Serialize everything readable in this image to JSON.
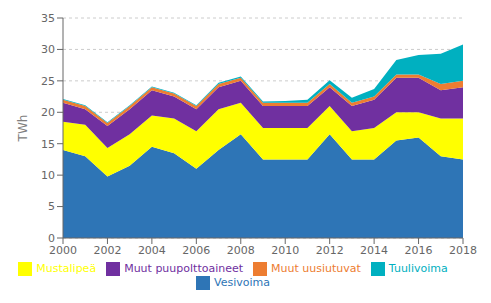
{
  "chart_data": {
    "type": "area",
    "stacked": true,
    "ylabel": "TWh",
    "x": [
      2000,
      2001,
      2002,
      2003,
      2004,
      2005,
      2006,
      2007,
      2008,
      2009,
      2010,
      2011,
      2012,
      2013,
      2014,
      2015,
      2016,
      2017,
      2018
    ],
    "xlim": [
      2000,
      2018
    ],
    "xticks": [
      2000,
      2002,
      2004,
      2006,
      2008,
      2010,
      2012,
      2014,
      2016,
      2018
    ],
    "ylim": [
      0,
      35
    ],
    "yticks": [
      0,
      5,
      10,
      15,
      20,
      25,
      30,
      35
    ],
    "grid": true,
    "legend": "bottom",
    "series": [
      {
        "name": "Vesivoima",
        "color": "#2e75b6",
        "values": [
          14.0,
          13.0,
          9.8,
          11.5,
          14.5,
          13.5,
          11.0,
          14.0,
          16.5,
          12.5,
          12.5,
          12.5,
          16.5,
          12.5,
          12.5,
          15.5,
          16.0,
          13.0,
          12.5
        ]
      },
      {
        "name": "Mustalipeä",
        "color": "#ffff00",
        "values": [
          4.5,
          5.0,
          4.5,
          5.0,
          5.0,
          5.5,
          6.0,
          6.5,
          5.0,
          5.0,
          5.0,
          5.0,
          4.5,
          4.5,
          5.0,
          4.5,
          4.0,
          6.0,
          6.5
        ]
      },
      {
        "name": "Muut puupolttoaineet",
        "color": "#7030a0",
        "values": [
          3.0,
          2.5,
          3.5,
          4.0,
          4.0,
          3.5,
          3.5,
          3.5,
          3.5,
          3.5,
          3.5,
          3.5,
          3.0,
          4.0,
          4.5,
          5.5,
          5.5,
          4.5,
          5.0
        ]
      },
      {
        "name": "Muut uusiutuvat",
        "color": "#ed7d31",
        "values": [
          0.5,
          0.5,
          0.5,
          0.5,
          0.5,
          0.5,
          0.5,
          0.5,
          0.5,
          0.5,
          0.5,
          0.5,
          0.5,
          0.5,
          0.5,
          0.5,
          0.5,
          1.0,
          1.0
        ]
      },
      {
        "name": "Tuulivoima",
        "color": "#00b0c0",
        "values": [
          0.1,
          0.1,
          0.1,
          0.1,
          0.1,
          0.1,
          0.1,
          0.2,
          0.2,
          0.2,
          0.3,
          0.5,
          0.6,
          0.8,
          1.2,
          2.3,
          3.1,
          4.8,
          5.8
        ]
      }
    ]
  }
}
